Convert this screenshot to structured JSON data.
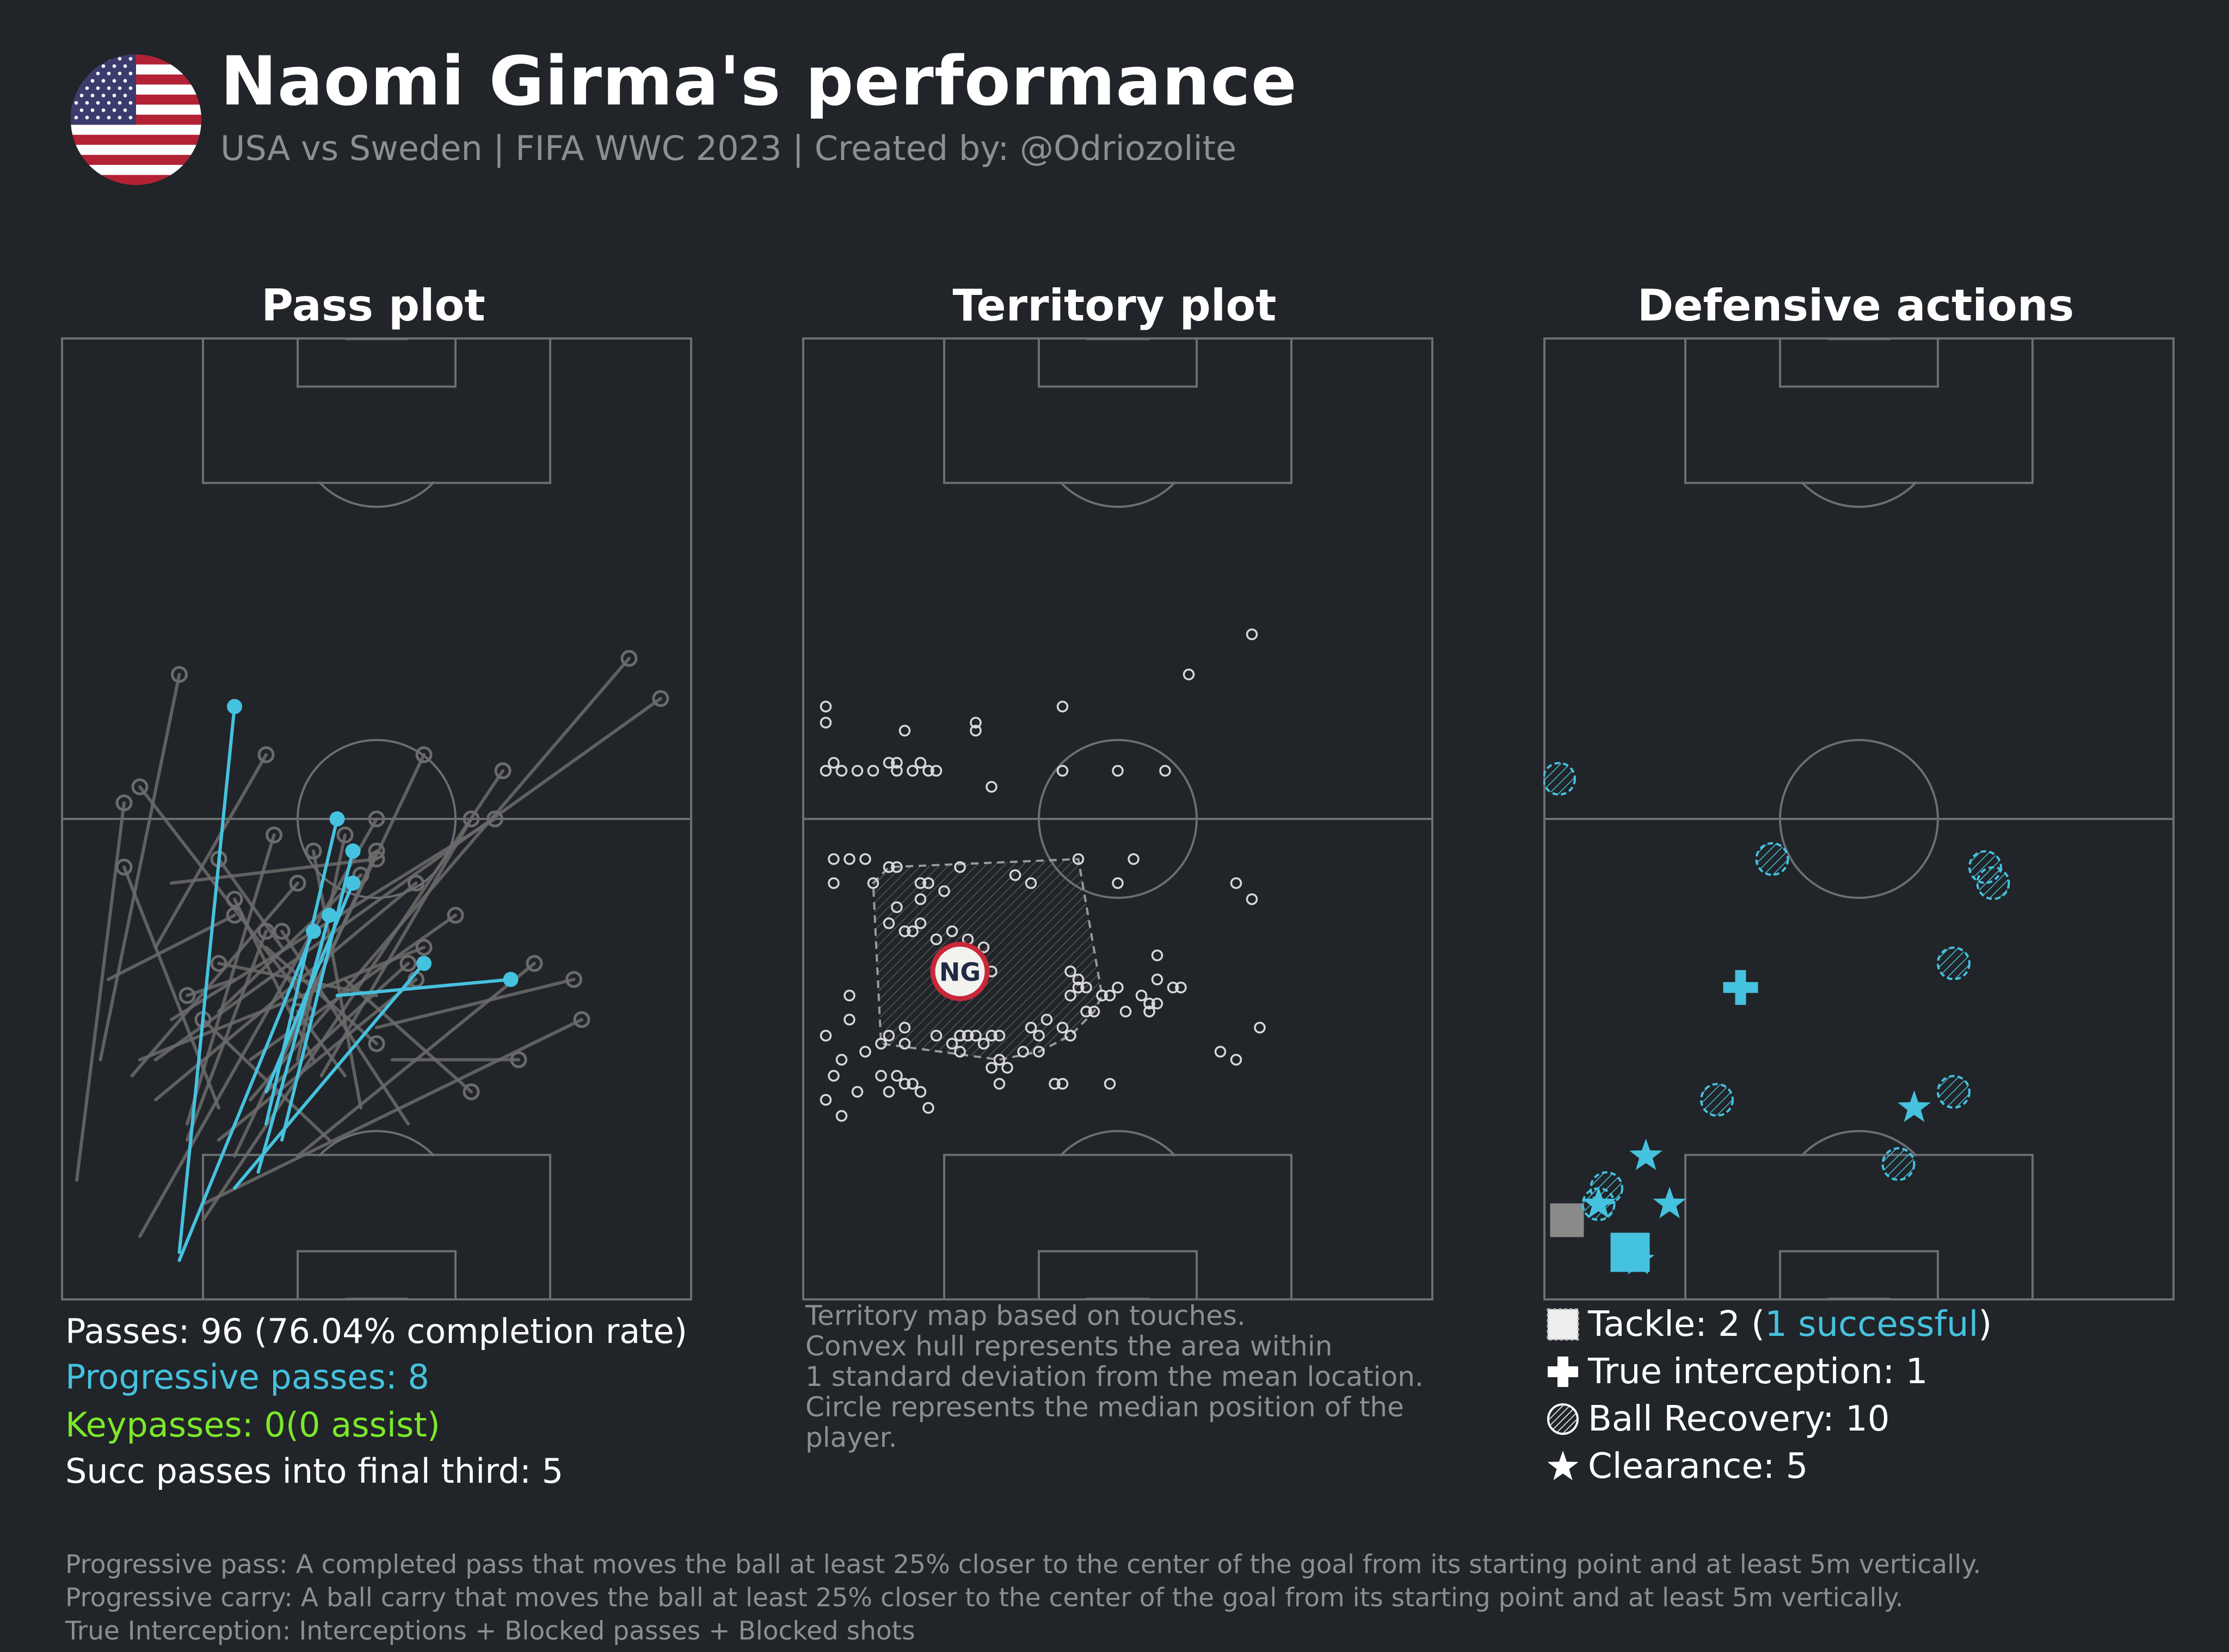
{
  "header": {
    "title": "Naomi Girma's performance",
    "subtitle": "USA vs Sweden | FIFA WWC 2023 | Created by: @Odriozolite"
  },
  "colors": {
    "background": "#212428",
    "accent_blue": "#45c2df",
    "keypass_green": "#7ce82a",
    "pitch_line": "#6b6e72",
    "pass_grey": "#6b6b6b",
    "median_ring": "#c8283a"
  },
  "panels": {
    "pass": {
      "title": "Pass plot",
      "stats": {
        "passes": "Passes: 96 (76.04% completion rate)",
        "progressive": "Progressive passes: 8",
        "keypasses": "Keypasses: 0(0 assist)",
        "final_third": "Succ passes into final third: 5"
      }
    },
    "territory": {
      "title": "Territory plot",
      "note": "Territory map based on touches.\nConvex hull represents the area within\n1 standard deviation from the mean location.\nCircle represents the median position of the\nplayer.",
      "median_label": "NG"
    },
    "defensive": {
      "title": "Defensive actions",
      "legend": {
        "tackle_prefix": "Tackle: 2 (",
        "tackle_success": "1 successful",
        "tackle_suffix": ")",
        "interception": "True interception: 1",
        "recovery": "Ball Recovery: 10",
        "clearance": "Clearance: 5"
      }
    }
  },
  "footnotes": [
    "Progressive pass: A completed pass that moves the ball at least 25% closer to the center of the goal from its starting point and at least 5m vertically.",
    "Progressive carry: A ball carry that moves the ball at least 25% closer to the center of the goal from its starting point and at least 5m vertically.",
    "True Interception: Interceptions + Blocked passes + Blocked shots"
  ],
  "chart_data": [
    {
      "type": "scatter",
      "name": "Pass plot",
      "pitch": {
        "length": 120,
        "width": 80,
        "attacking_direction": "up"
      },
      "series": [
        {
          "name": "pass",
          "segments": [
            [
              2,
              15,
              8,
              62
            ],
            [
              10,
              8,
              40,
              60
            ],
            [
              12,
              25,
              45,
              52
            ],
            [
              5,
              30,
              15,
              78
            ],
            [
              16,
              22,
              27,
              58
            ],
            [
              20,
              36,
              38,
              53
            ],
            [
              24,
              25,
              72,
              80
            ],
            [
              18,
              10,
              56,
              66
            ],
            [
              28,
              30,
              40,
              56
            ],
            [
              22,
              18,
              46,
              68
            ],
            [
              6,
              40,
              22,
              48
            ],
            [
              9,
              28,
              30,
              52
            ],
            [
              12,
              30,
              76,
              75
            ],
            [
              14,
              35,
              55,
              60
            ],
            [
              20,
              20,
              45,
              40
            ],
            [
              34,
              20,
              18,
              35
            ],
            [
              30,
              18,
              60,
              42
            ],
            [
              26,
              44,
              40,
              32
            ],
            [
              36,
              40,
              52,
              26
            ],
            [
              14,
              52,
              40,
              55
            ],
            [
              32,
              30,
              22,
              50
            ],
            [
              40,
              34,
              65,
              40
            ],
            [
              42,
              30,
              58,
              30
            ],
            [
              18,
              12,
              66,
              35
            ],
            [
              16,
              20,
              26,
              46
            ],
            [
              24,
              30,
              50,
              48
            ],
            [
              32,
              36,
              10,
              64
            ],
            [
              22,
              40,
              16,
              38
            ],
            [
              36,
              28,
              30,
              36
            ],
            [
              26,
              26,
              44,
              42
            ],
            [
              12,
              44,
              26,
              68
            ],
            [
              28,
              44,
              20,
              55
            ],
            [
              38,
              24,
              32,
              56
            ],
            [
              40,
              38,
              20,
              42
            ],
            [
              10,
              30,
              46,
              44
            ],
            [
              30,
              30,
              36,
              58
            ],
            [
              44,
              22,
              28,
              46
            ],
            [
              20,
              24,
              8,
              54
            ],
            [
              33,
              28,
              52,
              60
            ]
          ]
        },
        {
          "name": "progressive pass",
          "segments": [
            [
              15,
              6,
              22,
              74
            ],
            [
              26,
              22,
              35,
              60
            ],
            [
              28,
              20,
              37,
              56
            ],
            [
              25,
              16,
              34,
              48
            ],
            [
              26,
              26,
              37,
              52
            ],
            [
              15,
              5,
              32,
              46
            ],
            [
              35,
              38,
              57,
              40
            ],
            [
              22,
              14,
              46,
              42
            ]
          ]
        }
      ]
    },
    {
      "type": "scatter",
      "name": "Territory plot",
      "pitch": {
        "length": 120,
        "width": 80,
        "attacking_direction": "up"
      },
      "series": [
        {
          "name": "touch",
          "points": [
            [
              3,
              74
            ],
            [
              3,
              72
            ],
            [
              3,
              66
            ],
            [
              4,
              67
            ],
            [
              5,
              66
            ],
            [
              7,
              66
            ],
            [
              9,
              66
            ],
            [
              11,
              67
            ],
            [
              12,
              66
            ],
            [
              14,
              66
            ],
            [
              15,
              67
            ],
            [
              16,
              66
            ],
            [
              17,
              66
            ],
            [
              13,
              71
            ],
            [
              22,
              71
            ],
            [
              12,
              67
            ],
            [
              24,
              64
            ],
            [
              33,
              66
            ],
            [
              40,
              66
            ],
            [
              22,
              72
            ],
            [
              33,
              74
            ],
            [
              46,
              66
            ],
            [
              49,
              78
            ],
            [
              57,
              83
            ],
            [
              4,
              55
            ],
            [
              6,
              55
            ],
            [
              8,
              55
            ],
            [
              11,
              54
            ],
            [
              12,
              54
            ],
            [
              4,
              52
            ],
            [
              9,
              52
            ],
            [
              16,
              52
            ],
            [
              15,
              52
            ],
            [
              18,
              51
            ],
            [
              15,
              50
            ],
            [
              20,
              54
            ],
            [
              27,
              53
            ],
            [
              29,
              52
            ],
            [
              35,
              55
            ],
            [
              42,
              55
            ],
            [
              55,
              52
            ],
            [
              57,
              50
            ],
            [
              40,
              52
            ],
            [
              12,
              49
            ],
            [
              11,
              47
            ],
            [
              15,
              47
            ],
            [
              14,
              46
            ],
            [
              19,
              46
            ],
            [
              13,
              46
            ],
            [
              21,
              45
            ],
            [
              23,
              44
            ],
            [
              17,
              45
            ],
            [
              24,
              41
            ],
            [
              34,
              41
            ],
            [
              45,
              43
            ],
            [
              45,
              40
            ],
            [
              35,
              40
            ],
            [
              36,
              39
            ],
            [
              39,
              38
            ],
            [
              35,
              39
            ],
            [
              40,
              39
            ],
            [
              48,
              39
            ],
            [
              43,
              38
            ],
            [
              38,
              38
            ],
            [
              34,
              38
            ],
            [
              41,
              36
            ],
            [
              44,
              36
            ],
            [
              37,
              36
            ],
            [
              31,
              35
            ],
            [
              29,
              34
            ],
            [
              24,
              33
            ],
            [
              21,
              33
            ],
            [
              25,
              33
            ],
            [
              30,
              33
            ],
            [
              20,
              33
            ],
            [
              17,
              33
            ],
            [
              19,
              32
            ],
            [
              22,
              33
            ],
            [
              23,
              32
            ],
            [
              11,
              33
            ],
            [
              13,
              32
            ],
            [
              10,
              32
            ],
            [
              8,
              31
            ],
            [
              3,
              33
            ],
            [
              6,
              35
            ],
            [
              5,
              30
            ],
            [
              12,
              28
            ],
            [
              10,
              28
            ],
            [
              4,
              28
            ],
            [
              3,
              25
            ],
            [
              5,
              23
            ],
            [
              7,
              26
            ],
            [
              13,
              27
            ],
            [
              11,
              26
            ],
            [
              15,
              26
            ],
            [
              14,
              27
            ],
            [
              20,
              31
            ],
            [
              24,
              29
            ],
            [
              25,
              27
            ],
            [
              33,
              27
            ],
            [
              34,
              33
            ],
            [
              36,
              36
            ],
            [
              44,
              36
            ],
            [
              45,
              37
            ],
            [
              44,
              37
            ],
            [
              53,
              31
            ],
            [
              55,
              30
            ],
            [
              58,
              34
            ],
            [
              47,
              39
            ],
            [
              33,
              34
            ],
            [
              16,
              24
            ],
            [
              6,
              38
            ],
            [
              13,
              34
            ],
            [
              30,
              31
            ],
            [
              28,
              31
            ],
            [
              25,
              30
            ],
            [
              26,
              29
            ],
            [
              32,
              27
            ],
            [
              39,
              27
            ]
          ],
          "median": [
            20,
            41
          ]
        }
      ]
    },
    {
      "type": "scatter",
      "name": "Defensive actions",
      "pitch": {
        "length": 120,
        "width": 80,
        "attacking_direction": "up"
      },
      "series": [
        {
          "name": "Tackle",
          "points": [
            [
              3,
              10
            ],
            [
              11,
              6
            ]
          ],
          "successful": [
            false,
            true
          ]
        },
        {
          "name": "True interception",
          "points": [
            [
              25,
              39
            ]
          ]
        },
        {
          "name": "Ball Recovery",
          "points": [
            [
              2,
              65
            ],
            [
              29,
              55
            ],
            [
              56,
              54
            ],
            [
              57,
              52
            ],
            [
              52,
              42
            ],
            [
              22,
              25
            ],
            [
              52,
              26
            ],
            [
              45,
              17
            ],
            [
              8,
              14
            ],
            [
              7,
              12
            ]
          ]
        },
        {
          "name": "Clearance",
          "points": [
            [
              13,
              18
            ],
            [
              16,
              12
            ],
            [
              7,
              12
            ],
            [
              12,
              5
            ],
            [
              47,
              24
            ]
          ]
        }
      ]
    }
  ]
}
